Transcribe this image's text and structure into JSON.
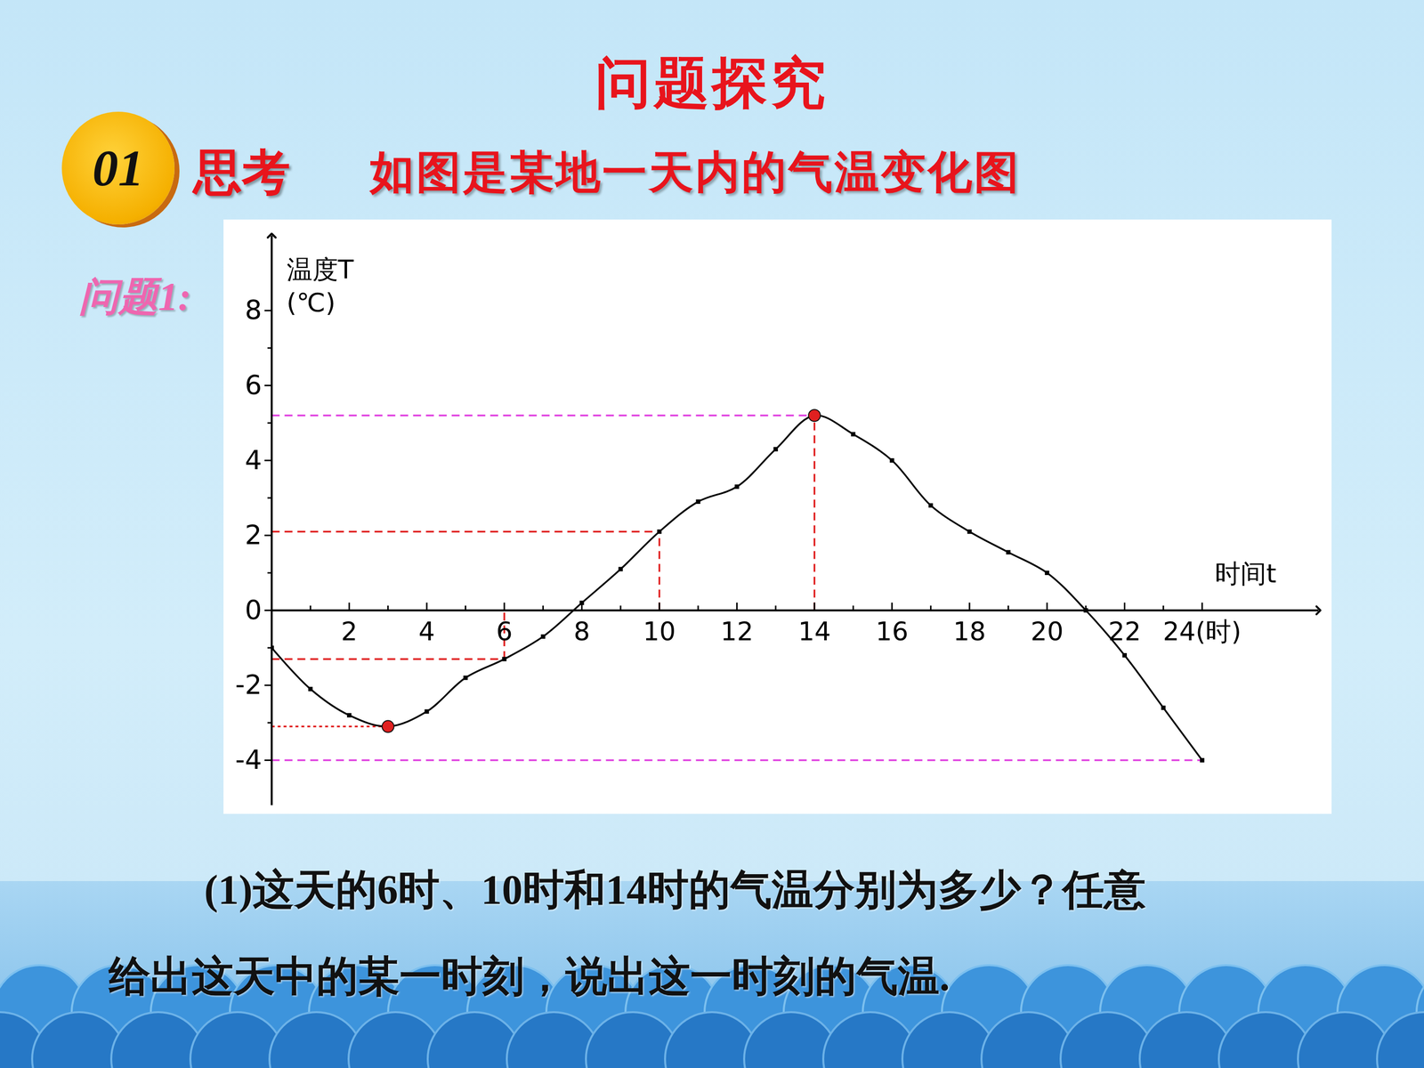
{
  "title": "问题探究",
  "badge": "01",
  "heading": "思考",
  "subtitle": "如图是某地一天内的气温变化图",
  "question_label": "问题1:",
  "question": [
    "(1)这天的6时、10时和14时的气温分别为多少？任意",
    "给出这天中的某一时刻，说出这一时刻的气温."
  ],
  "chart_data": {
    "type": "line",
    "y_label": "温度T\n(℃)",
    "x_label": "时间t",
    "x": [
      0,
      1,
      2,
      3,
      4,
      5,
      6,
      7,
      8,
      9,
      10,
      11,
      12,
      13,
      14,
      15,
      16,
      17,
      18,
      19,
      20,
      21,
      22,
      23,
      24
    ],
    "values": [
      -1.0,
      -2.1,
      -2.8,
      -3.1,
      -2.7,
      -1.8,
      -1.3,
      -0.7,
      0.2,
      1.1,
      2.1,
      2.9,
      3.3,
      4.3,
      5.2,
      4.7,
      4.0,
      2.8,
      2.1,
      1.55,
      1.0,
      0.0,
      -1.2,
      -2.6,
      -4.0
    ],
    "color": "#000000",
    "marker": "square",
    "xlim": [
      0,
      27
    ],
    "xticks": [
      2,
      4,
      6,
      8,
      10,
      12,
      14,
      16,
      18,
      20,
      22,
      {
        "value": 24,
        "label": "24(时)"
      }
    ],
    "ylim": [
      -5.2,
      10
    ],
    "yticks": [
      -4,
      -2,
      0,
      2,
      4,
      6,
      8
    ],
    "annotations": {
      "segments": [
        {
          "x": [
            0,
            14
          ],
          "y": [
            5.2,
            5.2
          ],
          "color": "#e040e0",
          "line_style": "dashed"
        },
        {
          "x": [
            0,
            24
          ],
          "y": [
            -4.0,
            -4.0
          ],
          "color": "#e040e0",
          "line_style": "dashed"
        },
        {
          "x": [
            0,
            6
          ],
          "y": [
            -1.3,
            -1.3
          ],
          "color": "#e02020",
          "line_style": "dashed"
        },
        {
          "x": [
            6,
            6
          ],
          "y": [
            -1.3,
            0
          ],
          "color": "#e02020",
          "line_style": "dashed"
        },
        {
          "x": [
            0,
            10
          ],
          "y": [
            2.1,
            2.1
          ],
          "color": "#e02020",
          "line_style": "dashed"
        },
        {
          "x": [
            10,
            10
          ],
          "y": [
            0,
            2.1
          ],
          "color": "#e02020",
          "line_style": "dashed"
        },
        {
          "x": [
            14,
            14
          ],
          "y": [
            0,
            5.2
          ],
          "color": "#e02020",
          "line_style": "dashed"
        },
        {
          "x": [
            0,
            3
          ],
          "y": [
            -3.1,
            -3.1
          ],
          "color": "#e02020",
          "line_style": "dotted"
        }
      ],
      "points": [
        {
          "x": 3,
          "y": -3.1,
          "color": "#e02020"
        },
        {
          "x": 14,
          "y": 5.2,
          "color": "#e02020"
        }
      ]
    }
  }
}
